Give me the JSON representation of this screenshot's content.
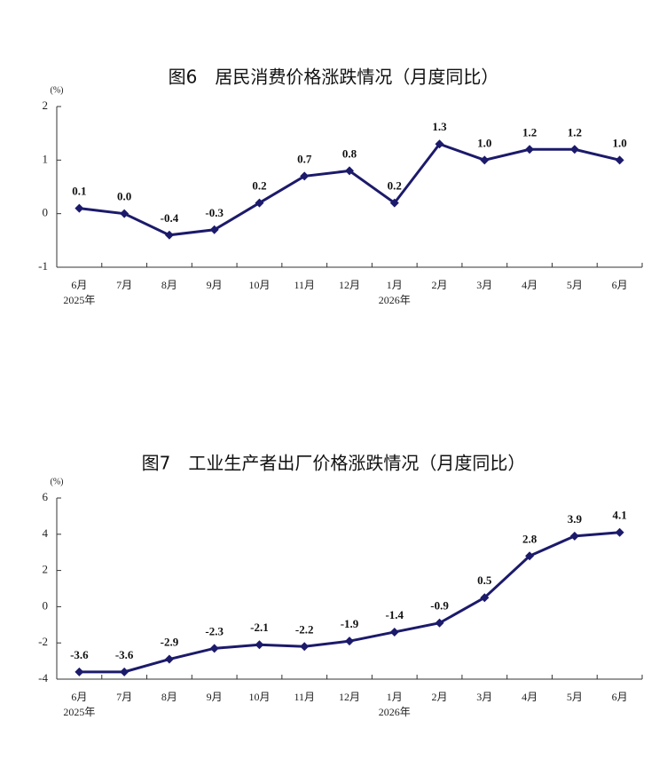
{
  "chart_data": [
    {
      "type": "line",
      "title": "图6　居民消费价格涨跌情况（月度同比）",
      "unit": "(%)",
      "categories": [
        "6月",
        "7月",
        "8月",
        "9月",
        "10月",
        "11月",
        "12月",
        "1月",
        "2月",
        "3月",
        "4月",
        "5月",
        "6月"
      ],
      "category_years": [
        "2025年",
        null,
        null,
        null,
        null,
        null,
        null,
        "2026年",
        null,
        null,
        null,
        null,
        null
      ],
      "values": [
        0.1,
        0.0,
        -0.4,
        -0.3,
        0.2,
        0.7,
        0.8,
        0.2,
        1.3,
        1.0,
        1.2,
        1.2,
        1.0
      ],
      "value_labels": [
        "0.1",
        "0.0",
        "-0.4",
        "-0.3",
        "0.2",
        "0.7",
        "0.8",
        "0.2",
        "1.3",
        "1.0",
        "1.2",
        "1.2",
        "1.0"
      ],
      "color": "#1c1a6b",
      "ylim": [
        -1,
        2
      ],
      "yticks": [
        -1,
        0,
        1,
        2
      ]
    },
    {
      "type": "line",
      "title": "图7　工业生产者出厂价格涨跌情况（月度同比）",
      "unit": "(%)",
      "categories": [
        "6月",
        "7月",
        "8月",
        "9月",
        "10月",
        "11月",
        "12月",
        "1月",
        "2月",
        "3月",
        "4月",
        "5月",
        "6月"
      ],
      "category_years": [
        "2025年",
        null,
        null,
        null,
        null,
        null,
        null,
        "2026年",
        null,
        null,
        null,
        null,
        null
      ],
      "values": [
        -3.6,
        -3.6,
        -2.9,
        -2.3,
        -2.1,
        -2.2,
        -1.9,
        -1.4,
        -0.9,
        0.5,
        2.8,
        3.9,
        4.1
      ],
      "color": "#1c1a6b",
      "ylim": [
        -4,
        6
      ],
      "yticks": [
        -4,
        -2,
        0,
        2,
        4,
        6
      ]
    }
  ]
}
